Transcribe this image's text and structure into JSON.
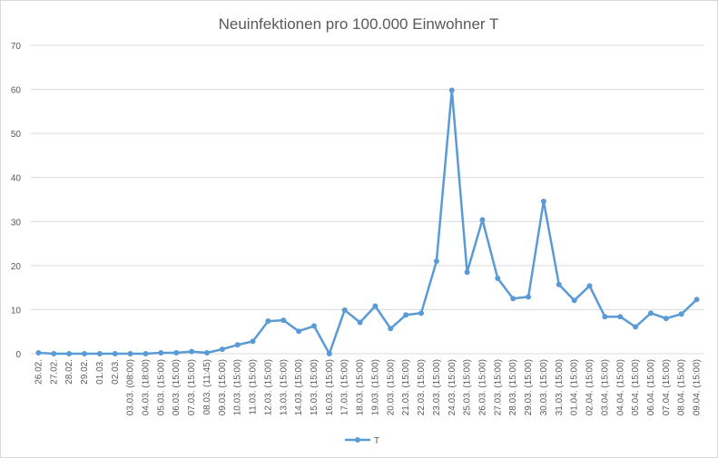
{
  "chart_data": {
    "type": "line",
    "title": "Neuinfektionen pro 100.000 Einwohner T",
    "xlabel": "",
    "ylabel": "",
    "ylim": [
      0,
      70
    ],
    "yticks": [
      0,
      10,
      20,
      30,
      40,
      50,
      60,
      70
    ],
    "grid": "horizontal",
    "legend_position": "bottom",
    "color": "#5b9bd5",
    "categories": [
      "26.02.",
      "27.02.",
      "28.02.",
      "29.02.",
      "01.03.",
      "02.03.",
      "03.03. (08:00)",
      "04.03. (18:00)",
      "05.03. (15:00)",
      "06.03. (15:00)",
      "07.03. (15:00)",
      "08.03. (11:45)",
      "09.03. (15:00)",
      "10.03. (15:00)",
      "11.03. (15:00)",
      "12.03. (15:00)",
      "13.03. (15:00)",
      "14.03. (15:00)",
      "15.03. (15:00)",
      "16.03. (15:00)",
      "17.03. (15:00)",
      "18.03. (15:00)",
      "19.03. (15:00)",
      "20.03. (15:00)",
      "21.03. (15:00)",
      "22.03. (15:00)",
      "23.03. (15:00)",
      "24.03. (15:00)",
      "25.03. (15:00)",
      "26.03. (15:00)",
      "27.03. (15:00)",
      "28.03. (15:00)",
      "29.03. (15:00)",
      "30.03. (15:00)",
      "31.03. (15:00)",
      "01.04. (15:00)",
      "02.04. (15:00)",
      "03.04. (15:00)",
      "04.04. (15:00)",
      "05.04. (15:00)",
      "06.04. (15:00)",
      "07.04. (15:00)",
      "08.04. (15:00)",
      "09.04. (15:00)"
    ],
    "series": [
      {
        "name": "T",
        "values": [
          0.2,
          0.0,
          0.0,
          0.0,
          0.0,
          0.0,
          0.0,
          0.0,
          0.2,
          0.2,
          0.5,
          0.2,
          1.0,
          2.0,
          2.8,
          7.4,
          7.6,
          5.1,
          6.3,
          0.0,
          9.9,
          7.1,
          10.8,
          5.7,
          8.8,
          9.2,
          21.0,
          59.8,
          18.5,
          30.4,
          17.1,
          12.5,
          12.9,
          34.6,
          15.7,
          12.1,
          15.4,
          8.4,
          8.4,
          6.1,
          9.2,
          8.0,
          9.0,
          12.3
        ]
      }
    ]
  }
}
